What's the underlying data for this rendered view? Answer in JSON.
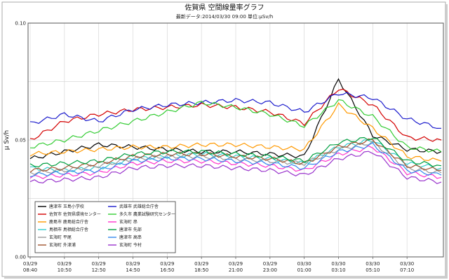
{
  "chart_data": {
    "type": "line",
    "title": "佐賀県 空間線量率グラフ",
    "subtitle": "最新データ:2014/03/30 09:00 単位:μSv/h",
    "ylabel": "μ Sv/h",
    "xlabel": "",
    "ylim": [
      0,
      0.1
    ],
    "y_ticks": [
      "0.00",
      "0.05",
      "0.10"
    ],
    "grid": true,
    "legend_position": "bottom-left",
    "x_ticks": [
      {
        "date": "03/29",
        "time": "08:40"
      },
      {
        "date": "03/29",
        "time": "10:50"
      },
      {
        "date": "03/29",
        "time": "12:50"
      },
      {
        "date": "03/29",
        "time": "14:50"
      },
      {
        "date": "03/29",
        "time": "16:50"
      },
      {
        "date": "03/29",
        "time": "18:50"
      },
      {
        "date": "03/29",
        "time": "21:00"
      },
      {
        "date": "03/29",
        "time": "23:00"
      },
      {
        "date": "03/30",
        "time": "01:00"
      },
      {
        "date": "03/30",
        "time": "03:10"
      },
      {
        "date": "03/30",
        "time": "05:10"
      },
      {
        "date": "03/30",
        "time": "07:10"
      }
    ],
    "x": [
      "08:40",
      "10:50",
      "12:50",
      "14:50",
      "16:50",
      "18:50",
      "21:00",
      "23:00",
      "01:00",
      "03:10",
      "05:10",
      "07:10",
      "09:00"
    ],
    "series": [
      {
        "name": "唐津市 玉島小学校",
        "color": "#000000",
        "values": [
          0.042,
          0.045,
          0.048,
          0.047,
          0.046,
          0.045,
          0.045,
          0.044,
          0.043,
          0.076,
          0.052,
          0.046,
          0.045
        ]
      },
      {
        "name": "佐賀市 佐賀県環境センター",
        "color": "#d40000",
        "values": [
          0.05,
          0.058,
          0.061,
          0.063,
          0.064,
          0.065,
          0.064,
          0.062,
          0.057,
          0.072,
          0.065,
          0.051,
          0.05
        ]
      },
      {
        "name": "鹿島市 鹿島総合庁舎",
        "color": "#ff9900",
        "values": [
          0.044,
          0.045,
          0.046,
          0.047,
          0.047,
          0.048,
          0.048,
          0.047,
          0.046,
          0.065,
          0.055,
          0.043,
          0.041
        ]
      },
      {
        "name": "鳥栖市 鳥栖総合庁舎",
        "color": "#33cccc",
        "values": [
          0.038,
          0.037,
          0.038,
          0.042,
          0.043,
          0.044,
          0.043,
          0.042,
          0.04,
          0.047,
          0.05,
          0.04,
          0.038
        ]
      },
      {
        "name": "玄海町 平尾",
        "color": "#999999",
        "values": [
          0.036,
          0.037,
          0.039,
          0.042,
          0.043,
          0.043,
          0.042,
          0.041,
          0.04,
          0.046,
          0.049,
          0.038,
          0.036
        ]
      },
      {
        "name": "玄海町 外津浦",
        "color": "#a0522d",
        "values": [
          0.037,
          0.038,
          0.04,
          0.043,
          0.044,
          0.044,
          0.043,
          0.042,
          0.04,
          0.047,
          0.05,
          0.039,
          0.037
        ]
      },
      {
        "name": "武雄市 武雄総合庁舎",
        "color": "#1a1acc",
        "values": [
          0.057,
          0.061,
          0.058,
          0.063,
          0.065,
          0.066,
          0.067,
          0.066,
          0.062,
          0.07,
          0.068,
          0.059,
          0.055
        ]
      },
      {
        "name": "多久市 農業試験研究センター",
        "color": "#33cc33",
        "values": [
          0.047,
          0.05,
          0.054,
          0.058,
          0.062,
          0.066,
          0.064,
          0.061,
          0.056,
          0.067,
          0.06,
          0.047,
          0.045
        ]
      },
      {
        "name": "玄海町 串",
        "color": "#ff33cc",
        "values": [
          0.034,
          0.035,
          0.036,
          0.04,
          0.041,
          0.041,
          0.04,
          0.039,
          0.037,
          0.044,
          0.047,
          0.036,
          0.034
        ]
      },
      {
        "name": "唐津市 先部",
        "color": "#00a040",
        "values": [
          0.039,
          0.04,
          0.041,
          0.044,
          0.045,
          0.045,
          0.044,
          0.043,
          0.041,
          0.049,
          0.051,
          0.041,
          0.039
        ]
      },
      {
        "name": "唐津市 高串",
        "color": "#3388ee",
        "values": [
          0.035,
          0.036,
          0.037,
          0.041,
          0.042,
          0.042,
          0.041,
          0.04,
          0.038,
          0.045,
          0.048,
          0.037,
          0.035
        ]
      },
      {
        "name": "玄海町 今村",
        "color": "#9933cc",
        "values": [
          0.032,
          0.033,
          0.034,
          0.038,
          0.039,
          0.039,
          0.038,
          0.037,
          0.035,
          0.042,
          0.045,
          0.034,
          0.032
        ]
      }
    ]
  }
}
